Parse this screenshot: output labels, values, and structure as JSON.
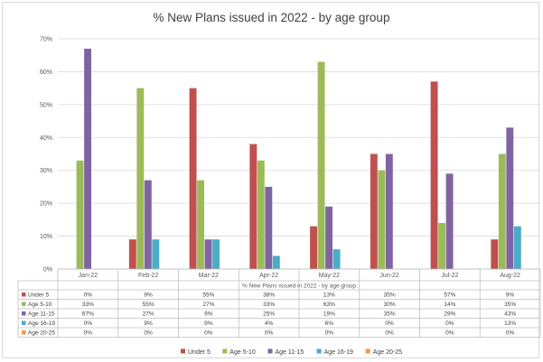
{
  "chart_data": {
    "type": "bar",
    "title": "% New Plans issued in 2022 - by age group",
    "xlabel": "% New Plans issued in 2022 - by age group",
    "ylabel": "",
    "categories": [
      "Jan-22",
      "Feb-22",
      "Mar-22",
      "Apr-22",
      "May-22",
      "Jun-22",
      "Jul-22",
      "Aug-22"
    ],
    "y_ticks": [
      "0%",
      "10%",
      "20%",
      "30%",
      "40%",
      "50%",
      "60%",
      "70%"
    ],
    "ylim": [
      0,
      70
    ],
    "grid": true,
    "legend_position": "bottom",
    "data_table": true,
    "series": [
      {
        "name": "Under 5",
        "color": "#c0504d",
        "values": [
          0,
          9,
          55,
          38,
          13,
          35,
          57,
          9
        ],
        "labels": [
          "0%",
          "9%",
          "55%",
          "38%",
          "13%",
          "35%",
          "57%",
          "9%"
        ]
      },
      {
        "name": "Age 5-10",
        "color": "#9bbb59",
        "values": [
          33,
          55,
          27,
          33,
          63,
          30,
          14,
          35
        ],
        "labels": [
          "33%",
          "55%",
          "27%",
          "33%",
          "63%",
          "30%",
          "14%",
          "35%"
        ]
      },
      {
        "name": "Age 11-15",
        "color": "#8064a2",
        "values": [
          67,
          27,
          9,
          25,
          19,
          35,
          29,
          43
        ],
        "labels": [
          "67%",
          "27%",
          "9%",
          "25%",
          "19%",
          "35%",
          "29%",
          "43%"
        ]
      },
      {
        "name": "Age 16-19",
        "color": "#4bacc6",
        "values": [
          0,
          9,
          9,
          4,
          6,
          0,
          0,
          13
        ],
        "labels": [
          "0%",
          "9%",
          "9%",
          "4%",
          "6%",
          "0%",
          "0%",
          "13%"
        ]
      },
      {
        "name": "Age 20-25",
        "color": "#f79646",
        "values": [
          0,
          0,
          0,
          0,
          0,
          0,
          0,
          0
        ],
        "labels": [
          "0%",
          "0%",
          "0%",
          "0%",
          "0%",
          "0%",
          "0%",
          "0%"
        ]
      }
    ]
  }
}
